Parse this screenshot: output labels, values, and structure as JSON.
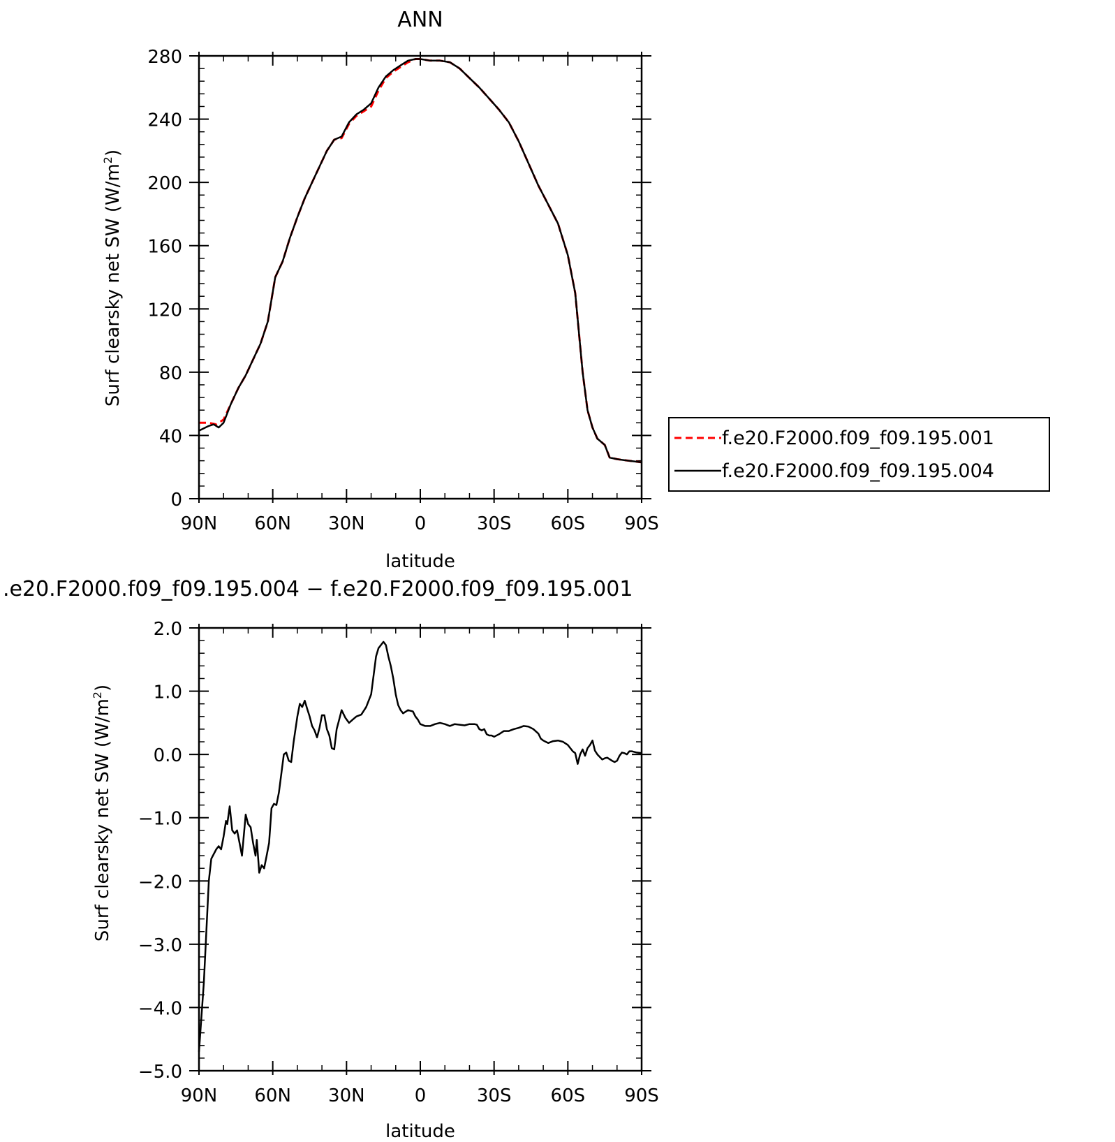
{
  "chart_data": [
    {
      "type": "line",
      "title": "ANN",
      "xlabel": "latitude",
      "ylabel": "Surf clearsky net SW (W/m²)",
      "ylabel_main": "Surf clearsky net SW (W/m",
      "ylabel_sup": "2",
      "ylabel_tail": ")",
      "xlim": [
        -90,
        90
      ],
      "ylim": [
        0,
        280
      ],
      "xticks": [
        -90,
        -60,
        -30,
        0,
        30,
        60,
        90
      ],
      "xtick_labels": [
        "90N",
        "60N",
        "30N",
        "0",
        "30S",
        "60S",
        "90S"
      ],
      "yticks": [
        0,
        40,
        80,
        120,
        160,
        200,
        240,
        280
      ],
      "ytick_labels": [
        "0",
        "40",
        "80",
        "120",
        "160",
        "200",
        "240",
        "280"
      ],
      "grid": false,
      "legend_position": "right",
      "series": [
        {
          "name": "f.e20.F2000.f09_f09.195.001",
          "color": "#ff0000",
          "dash": "dashed",
          "points": [
            [
              -90,
              48
            ],
            [
              -86,
              48
            ],
            [
              -83,
              47
            ],
            [
              -80,
              50
            ],
            [
              -77,
              60
            ],
            [
              -74,
              70
            ],
            [
              -71,
              78
            ],
            [
              -68,
              88
            ],
            [
              -65,
              98
            ],
            [
              -62,
              112
            ],
            [
              -59,
              140
            ],
            [
              -56,
              150
            ],
            [
              -53,
              165
            ],
            [
              -50,
              178
            ],
            [
              -47,
              190
            ],
            [
              -44,
              200
            ],
            [
              -41,
              210
            ],
            [
              -38,
              220
            ],
            [
              -35,
              227
            ],
            [
              -32,
              228
            ],
            [
              -29,
              237
            ],
            [
              -26,
              242
            ],
            [
              -23,
              245
            ],
            [
              -20,
              248
            ],
            [
              -17,
              258
            ],
            [
              -14,
              266
            ],
            [
              -11,
              270
            ],
            [
              -8,
              273
            ],
            [
              -5,
              276
            ],
            [
              -2,
              278
            ],
            [
              0,
              278
            ],
            [
              4,
              277
            ],
            [
              8,
              277
            ],
            [
              12,
              276
            ],
            [
              16,
              272
            ],
            [
              20,
              266
            ],
            [
              24,
              260
            ],
            [
              28,
              253
            ],
            [
              32,
              246
            ],
            [
              36,
              238
            ],
            [
              40,
              226
            ],
            [
              44,
              212
            ],
            [
              48,
              198
            ],
            [
              52,
              186
            ],
            [
              56,
              174
            ],
            [
              60,
              154
            ],
            [
              63,
              130
            ],
            [
              66,
              80
            ],
            [
              68,
              56
            ],
            [
              70,
              45
            ],
            [
              72,
              38
            ],
            [
              75,
              34
            ],
            [
              77,
              26
            ],
            [
              80,
              25
            ],
            [
              85,
              24
            ],
            [
              90,
              23
            ]
          ]
        },
        {
          "name": "f.e20.F2000.f09_f09.195.004",
          "color": "#000000",
          "dash": "solid",
          "points": [
            [
              -90,
              43
            ],
            [
              -86,
              46
            ],
            [
              -84,
              47
            ],
            [
              -82,
              45
            ],
            [
              -80,
              48
            ],
            [
              -77,
              60
            ],
            [
              -74,
              70
            ],
            [
              -71,
              78
            ],
            [
              -68,
              88
            ],
            [
              -65,
              98
            ],
            [
              -62,
              112
            ],
            [
              -59,
              140
            ],
            [
              -56,
              150
            ],
            [
              -53,
              165
            ],
            [
              -50,
              178
            ],
            [
              -47,
              190
            ],
            [
              -44,
              200
            ],
            [
              -41,
              210
            ],
            [
              -38,
              220
            ],
            [
              -35,
              227
            ],
            [
              -32,
              229
            ],
            [
              -29,
              238
            ],
            [
              -26,
              243
            ],
            [
              -23,
              246
            ],
            [
              -20,
              250
            ],
            [
              -17,
              260
            ],
            [
              -14,
              267
            ],
            [
              -11,
              271
            ],
            [
              -8,
              274
            ],
            [
              -5,
              277
            ],
            [
              -2,
              278
            ],
            [
              0,
              278
            ],
            [
              4,
              277
            ],
            [
              8,
              277
            ],
            [
              12,
              276
            ],
            [
              16,
              272
            ],
            [
              20,
              266
            ],
            [
              24,
              260
            ],
            [
              28,
              253
            ],
            [
              32,
              246
            ],
            [
              36,
              238
            ],
            [
              40,
              226
            ],
            [
              44,
              212
            ],
            [
              48,
              198
            ],
            [
              52,
              186
            ],
            [
              56,
              174
            ],
            [
              60,
              154
            ],
            [
              63,
              130
            ],
            [
              66,
              80
            ],
            [
              68,
              56
            ],
            [
              70,
              45
            ],
            [
              72,
              38
            ],
            [
              75,
              34
            ],
            [
              77,
              26
            ],
            [
              80,
              25
            ],
            [
              85,
              24
            ],
            [
              90,
              23
            ]
          ]
        }
      ]
    },
    {
      "type": "line",
      "title": ".e20.F2000.f09_f09.195.004 − f.e20.F2000.f09_f09.195.001",
      "xlabel": "latitude",
      "ylabel": "Surf clearsky net SW (W/m²)",
      "ylabel_main": "Surf clearsky net SW (W/m",
      "ylabel_sup": "2",
      "ylabel_tail": ")",
      "xlim": [
        -90,
        90
      ],
      "ylim": [
        -5,
        2
      ],
      "xticks": [
        -90,
        -60,
        -30,
        0,
        30,
        60,
        90
      ],
      "xtick_labels": [
        "90N",
        "60N",
        "30N",
        "0",
        "30S",
        "60S",
        "90S"
      ],
      "yticks": [
        -5,
        -4,
        -3,
        -2,
        -1,
        0,
        1,
        2
      ],
      "ytick_labels": [
        "−5.0",
        "−4.0",
        "−3.0",
        "−2.0",
        "−1.0",
        "0.0",
        "1.0",
        "2.0"
      ],
      "grid": false,
      "series": [
        {
          "color": "#000000",
          "dash": "solid",
          "points": [
            [
              -90,
              -4.7
            ],
            [
              -88,
              -3.6
            ],
            [
              -86,
              -2.0
            ],
            [
              -85,
              -1.65
            ],
            [
              -83,
              -1.5
            ],
            [
              -82,
              -1.45
            ],
            [
              -81,
              -1.5
            ],
            [
              -80,
              -1.3
            ],
            [
              -79,
              -1.05
            ],
            [
              -78.5,
              -1.1
            ],
            [
              -77.5,
              -0.82
            ],
            [
              -76.5,
              -1.2
            ],
            [
              -75.5,
              -1.25
            ],
            [
              -74.5,
              -1.2
            ],
            [
              -73.5,
              -1.4
            ],
            [
              -72.5,
              -1.6
            ],
            [
              -71,
              -0.95
            ],
            [
              -70,
              -1.1
            ],
            [
              -69,
              -1.15
            ],
            [
              -68,
              -1.4
            ],
            [
              -67,
              -1.6
            ],
            [
              -66.5,
              -1.35
            ],
            [
              -65.5,
              -1.87
            ],
            [
              -64.5,
              -1.75
            ],
            [
              -63.5,
              -1.8
            ],
            [
              -62.5,
              -1.6
            ],
            [
              -61.5,
              -1.4
            ],
            [
              -60.5,
              -0.85
            ],
            [
              -59.5,
              -0.78
            ],
            [
              -58.5,
              -0.8
            ],
            [
              -57.5,
              -0.6
            ],
            [
              -56.5,
              -0.3
            ],
            [
              -55.5,
              0.0
            ],
            [
              -54.5,
              0.03
            ],
            [
              -53.5,
              -0.1
            ],
            [
              -52.5,
              -0.12
            ],
            [
              -51.5,
              0.2
            ],
            [
              -50,
              0.6
            ],
            [
              -49,
              0.8
            ],
            [
              -48,
              0.75
            ],
            [
              -47,
              0.85
            ],
            [
              -46,
              0.72
            ],
            [
              -45,
              0.6
            ],
            [
              -44,
              0.45
            ],
            [
              -43,
              0.38
            ],
            [
              -42,
              0.27
            ],
            [
              -41,
              0.42
            ],
            [
              -40,
              0.62
            ],
            [
              -39,
              0.62
            ],
            [
              -38,
              0.4
            ],
            [
              -37,
              0.3
            ],
            [
              -36,
              0.1
            ],
            [
              -35,
              0.08
            ],
            [
              -34,
              0.4
            ],
            [
              -33,
              0.55
            ],
            [
              -32,
              0.7
            ],
            [
              -30.5,
              0.58
            ],
            [
              -29,
              0.5
            ],
            [
              -27.5,
              0.55
            ],
            [
              -26,
              0.6
            ],
            [
              -24,
              0.63
            ],
            [
              -22,
              0.75
            ],
            [
              -20,
              0.95
            ],
            [
              -18,
              1.55
            ],
            [
              -17,
              1.68
            ],
            [
              -16,
              1.73
            ],
            [
              -15,
              1.78
            ],
            [
              -14,
              1.73
            ],
            [
              -13,
              1.55
            ],
            [
              -12,
              1.4
            ],
            [
              -11,
              1.2
            ],
            [
              -10,
              0.95
            ],
            [
              -9,
              0.78
            ],
            [
              -8,
              0.7
            ],
            [
              -7,
              0.65
            ],
            [
              -5,
              0.7
            ],
            [
              -3,
              0.68
            ],
            [
              -2,
              0.6
            ],
            [
              -1,
              0.55
            ],
            [
              0,
              0.48
            ],
            [
              2,
              0.45
            ],
            [
              4,
              0.45
            ],
            [
              6,
              0.48
            ],
            [
              8,
              0.5
            ],
            [
              10,
              0.48
            ],
            [
              12,
              0.45
            ],
            [
              14,
              0.48
            ],
            [
              16,
              0.47
            ],
            [
              18,
              0.46
            ],
            [
              20,
              0.48
            ],
            [
              22,
              0.48
            ],
            [
              23,
              0.47
            ],
            [
              24,
              0.4
            ],
            [
              25,
              0.38
            ],
            [
              26,
              0.4
            ],
            [
              27,
              0.32
            ],
            [
              28,
              0.3
            ],
            [
              29,
              0.3
            ],
            [
              30,
              0.28
            ],
            [
              32,
              0.32
            ],
            [
              34,
              0.37
            ],
            [
              36,
              0.37
            ],
            [
              38,
              0.4
            ],
            [
              40,
              0.42
            ],
            [
              42,
              0.45
            ],
            [
              44,
              0.44
            ],
            [
              46,
              0.4
            ],
            [
              48,
              0.33
            ],
            [
              49,
              0.25
            ],
            [
              50,
              0.22
            ],
            [
              51,
              0.2
            ],
            [
              52,
              0.18
            ],
            [
              54,
              0.21
            ],
            [
              56,
              0.22
            ],
            [
              58,
              0.2
            ],
            [
              60,
              0.15
            ],
            [
              62,
              0.05
            ],
            [
              63,
              0.02
            ],
            [
              64,
              -0.15
            ],
            [
              65,
              0.0
            ],
            [
              66,
              0.08
            ],
            [
              67,
              -0.02
            ],
            [
              68,
              0.1
            ],
            [
              69,
              0.15
            ],
            [
              70,
              0.22
            ],
            [
              71,
              0.06
            ],
            [
              72,
              0.0
            ],
            [
              73,
              -0.04
            ],
            [
              74,
              -0.08
            ],
            [
              75,
              -0.06
            ],
            [
              76,
              -0.05
            ],
            [
              78,
              -0.1
            ],
            [
              79,
              -0.12
            ],
            [
              80,
              -0.1
            ],
            [
              81,
              -0.02
            ],
            [
              82,
              0.03
            ],
            [
              83,
              0.02
            ],
            [
              84,
              0.0
            ],
            [
              85,
              0.05
            ],
            [
              86,
              0.05
            ],
            [
              88,
              0.03
            ],
            [
              90,
              0.02
            ]
          ]
        }
      ]
    }
  ]
}
